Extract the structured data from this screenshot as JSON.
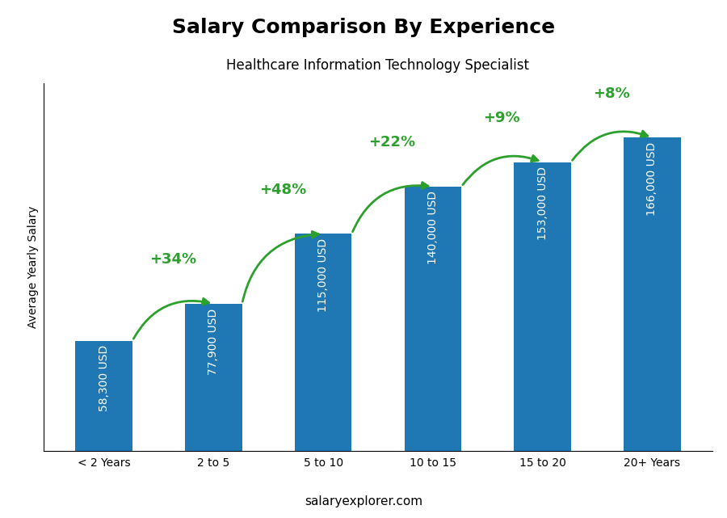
{
  "chart_data": {
    "type": "bar",
    "title": "Salary Comparison By Experience",
    "subtitle": "Healthcare Information Technology Specialist",
    "categories": [
      "< 2 Years",
      "2 to 5",
      "5 to 10",
      "10 to 15",
      "15 to 20",
      "20+ Years"
    ],
    "values": [
      58300,
      77900,
      115000,
      140000,
      153000,
      166000
    ],
    "value_labels": [
      "58,300 USD",
      "77,900 USD",
      "115,000 USD",
      "140,000 USD",
      "153,000 USD",
      "166,000 USD"
    ],
    "data_labels": true,
    "annotations": [
      "+34%",
      "+48%",
      "+22%",
      "+9%",
      "+8%"
    ],
    "ylabel": "Average Yearly Salary",
    "footer": "salaryexplorer.com",
    "ylim": [
      0,
      195000
    ],
    "tick_labels": "x",
    "grid": false
  }
}
